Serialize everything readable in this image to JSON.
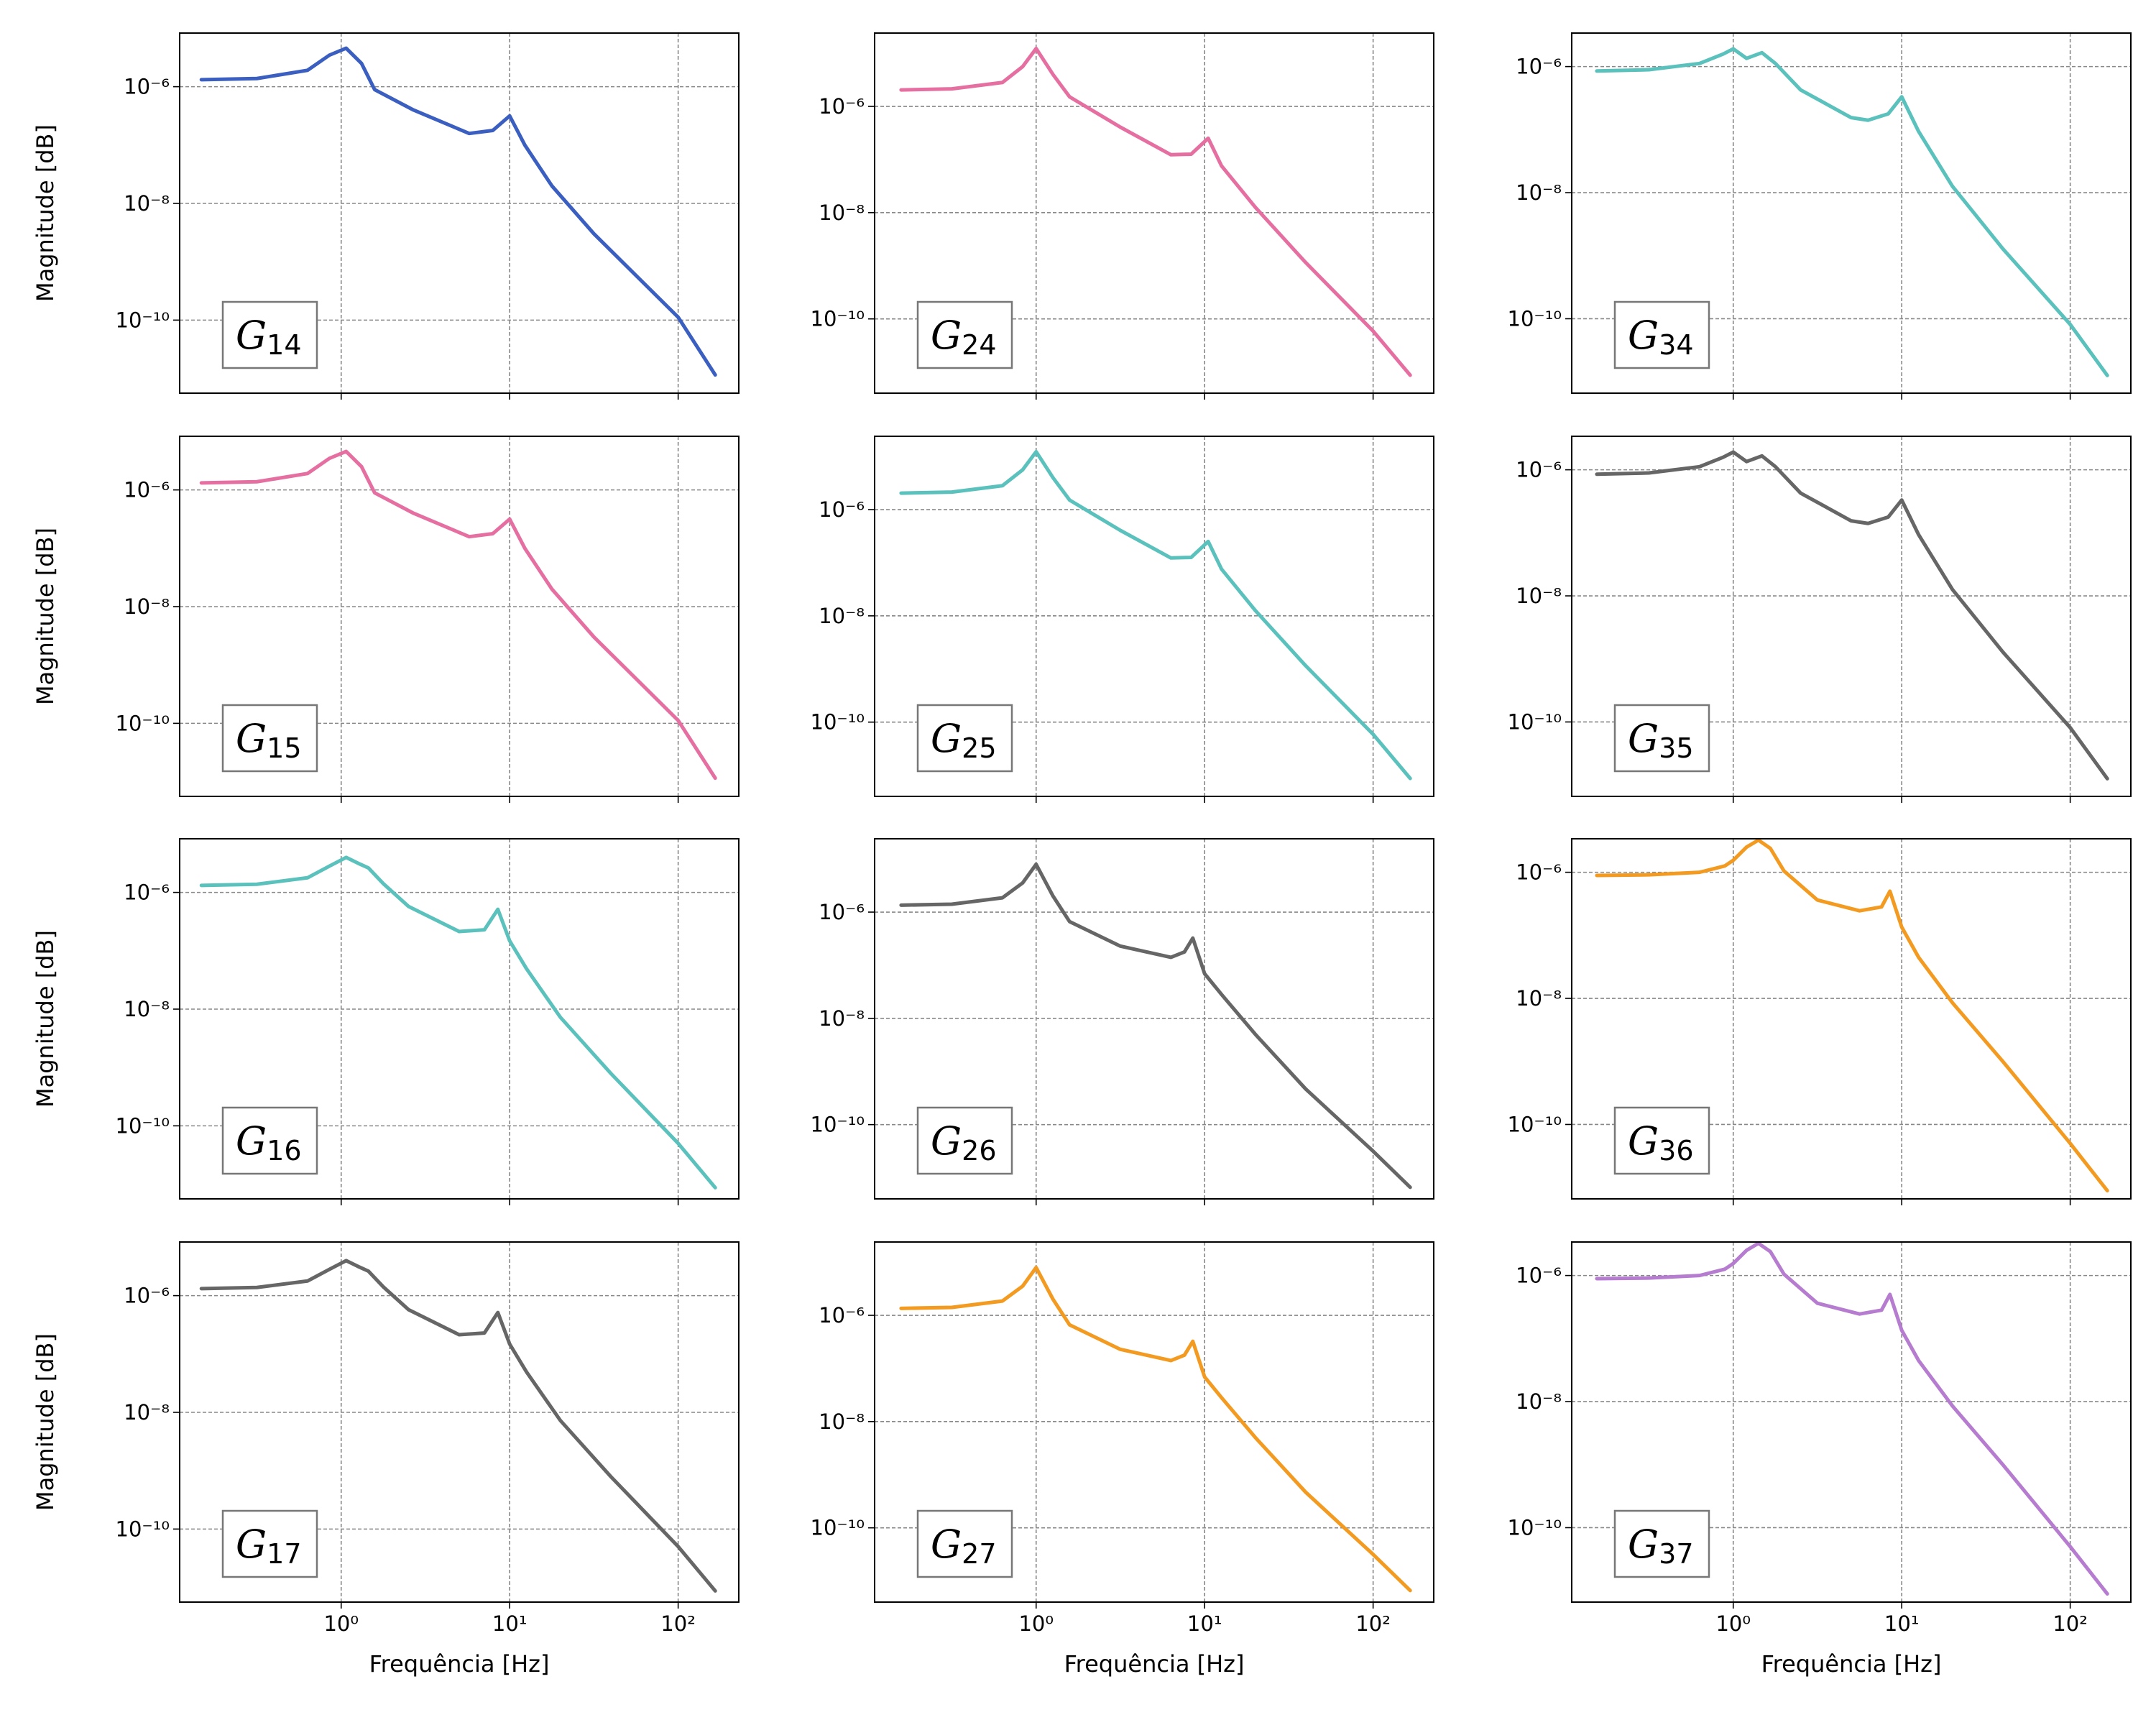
{
  "chart_data": [
    {
      "type": "line",
      "label": {
        "text": "G",
        "sub": "14"
      },
      "ylabel": "Magnitude [dB]",
      "color": "#3b5fc0",
      "log_x": true,
      "log_y": true,
      "grid": true,
      "xlim": [
        0.11,
        229
      ],
      "ylim": [
        5.6e-12,
        8.3e-06
      ],
      "xticks": [
        1,
        10,
        100
      ],
      "yticks": [
        {
          "value": 1e-10,
          "label": "10⁻¹⁰"
        },
        {
          "value": 1e-08,
          "label": "10⁻⁸"
        },
        {
          "value": 1e-06,
          "label": "10⁻⁶"
        }
      ],
      "x": [
        0.148,
        0.316,
        0.631,
        0.851,
        1.07,
        1.32,
        1.58,
        2.69,
        5.75,
        7.94,
        10,
        12.3,
        17.8,
        31.6,
        100,
        166
      ],
      "values": [
        1.32e-06,
        1.38e-06,
        1.91e-06,
        3.47e-06,
        4.57e-06,
        2.51e-06,
        8.91e-07,
        3.98e-07,
        1.58e-07,
        1.78e-07,
        3.16e-07,
        1e-07,
        2e-08,
        3.02e-09,
        1.12e-10,
        1.15e-11
      ]
    },
    {
      "type": "line",
      "label": {
        "text": "G",
        "sub": "24"
      },
      "color": "#e66fa1",
      "log_x": true,
      "log_y": true,
      "grid": true,
      "xlim": [
        0.11,
        229
      ],
      "ylim": [
        4e-12,
        2.4e-05
      ],
      "xticks": [
        1,
        10,
        100
      ],
      "yticks": [
        {
          "value": 1e-10,
          "label": "10⁻¹⁰"
        },
        {
          "value": 1e-08,
          "label": "10⁻⁸"
        },
        {
          "value": 1e-06,
          "label": "10⁻⁶"
        }
      ],
      "x": [
        0.158,
        0.316,
        0.631,
        0.832,
        1,
        1.26,
        1.58,
        3.16,
        6.31,
        8.32,
        10.5,
        12.6,
        20,
        39.8,
        100,
        166
      ],
      "values": [
        2.04e-06,
        2.14e-06,
        2.82e-06,
        5.62e-06,
        1.23e-05,
        3.98e-06,
        1.51e-06,
        4.07e-07,
        1.23e-07,
        1.26e-07,
        2.51e-07,
        7.59e-08,
        1.26e-08,
        1.15e-09,
        5.89e-11,
        8.71e-12
      ]
    },
    {
      "type": "line",
      "label": {
        "text": "G",
        "sub": "34"
      },
      "color": "#5bc1bd",
      "log_x": true,
      "log_y": true,
      "grid": true,
      "xlim": [
        0.11,
        229
      ],
      "ylim": [
        6.6e-12,
        3.4e-06
      ],
      "xticks": [
        1,
        10,
        100
      ],
      "yticks": [
        {
          "value": 1e-10,
          "label": "10⁻¹⁰"
        },
        {
          "value": 1e-08,
          "label": "10⁻⁸"
        },
        {
          "value": 1e-06,
          "label": "10⁻⁶"
        }
      ],
      "x": [
        0.155,
        0.316,
        0.631,
        0.871,
        1,
        1.2,
        1.48,
        1.78,
        2.51,
        5.01,
        6.31,
        8.32,
        10,
        12.6,
        20,
        39.8,
        100,
        166
      ],
      "values": [
        8.51e-07,
        8.91e-07,
        1.12e-06,
        1.58e-06,
        1.91e-06,
        1.35e-06,
        1.66e-06,
        1.12e-06,
        4.27e-07,
        1.55e-07,
        1.41e-07,
        1.78e-07,
        3.31e-07,
        9.33e-08,
        1.26e-08,
        1.29e-09,
        8.13e-11,
        1.26e-11
      ]
    },
    {
      "type": "line",
      "label": {
        "text": "G",
        "sub": "15"
      },
      "ylabel": "Magnitude [dB]",
      "color": "#e66fa1",
      "log_x": true,
      "log_y": true,
      "grid": true,
      "xlim": [
        0.11,
        229
      ],
      "ylim": [
        5.6e-12,
        8.3e-06
      ],
      "xticks": [
        1,
        10,
        100
      ],
      "yticks": [
        {
          "value": 1e-10,
          "label": "10⁻¹⁰"
        },
        {
          "value": 1e-08,
          "label": "10⁻⁸"
        },
        {
          "value": 1e-06,
          "label": "10⁻⁶"
        }
      ],
      "x": [
        0.148,
        0.316,
        0.631,
        0.851,
        1.07,
        1.32,
        1.58,
        2.69,
        5.75,
        7.94,
        10,
        12.3,
        17.8,
        31.6,
        100,
        166
      ],
      "values": [
        1.32e-06,
        1.38e-06,
        1.91e-06,
        3.47e-06,
        4.57e-06,
        2.51e-06,
        8.91e-07,
        3.98e-07,
        1.58e-07,
        1.78e-07,
        3.16e-07,
        1e-07,
        2e-08,
        3.02e-09,
        1.12e-10,
        1.15e-11
      ]
    },
    {
      "type": "line",
      "label": {
        "text": "G",
        "sub": "25"
      },
      "color": "#5bc1bd",
      "log_x": true,
      "log_y": true,
      "grid": true,
      "xlim": [
        0.11,
        229
      ],
      "ylim": [
        4e-12,
        2.4e-05
      ],
      "xticks": [
        1,
        10,
        100
      ],
      "yticks": [
        {
          "value": 1e-10,
          "label": "10⁻¹⁰"
        },
        {
          "value": 1e-08,
          "label": "10⁻⁸"
        },
        {
          "value": 1e-06,
          "label": "10⁻⁶"
        }
      ],
      "x": [
        0.158,
        0.316,
        0.631,
        0.832,
        1,
        1.26,
        1.58,
        3.16,
        6.31,
        8.32,
        10.5,
        12.6,
        20,
        39.8,
        100,
        166
      ],
      "values": [
        2.04e-06,
        2.14e-06,
        2.82e-06,
        5.62e-06,
        1.23e-05,
        3.98e-06,
        1.51e-06,
        4.07e-07,
        1.23e-07,
        1.26e-07,
        2.51e-07,
        7.59e-08,
        1.26e-08,
        1.15e-09,
        5.89e-11,
        8.71e-12
      ]
    },
    {
      "type": "line",
      "label": {
        "text": "G",
        "sub": "35"
      },
      "color": "#666666",
      "log_x": true,
      "log_y": true,
      "grid": true,
      "xlim": [
        0.11,
        229
      ],
      "ylim": [
        6.6e-12,
        3.4e-06
      ],
      "xticks": [
        1,
        10,
        100
      ],
      "yticks": [
        {
          "value": 1e-10,
          "label": "10⁻¹⁰"
        },
        {
          "value": 1e-08,
          "label": "10⁻⁸"
        },
        {
          "value": 1e-06,
          "label": "10⁻⁶"
        }
      ],
      "x": [
        0.155,
        0.316,
        0.631,
        0.871,
        1,
        1.2,
        1.48,
        1.78,
        2.51,
        5.01,
        6.31,
        8.32,
        10,
        12.6,
        20,
        39.8,
        100,
        166
      ],
      "values": [
        8.51e-07,
        8.91e-07,
        1.12e-06,
        1.58e-06,
        1.91e-06,
        1.35e-06,
        1.66e-06,
        1.12e-06,
        4.27e-07,
        1.55e-07,
        1.41e-07,
        1.78e-07,
        3.31e-07,
        9.33e-08,
        1.26e-08,
        1.29e-09,
        8.13e-11,
        1.26e-11
      ]
    },
    {
      "type": "line",
      "label": {
        "text": "G",
        "sub": "16"
      },
      "ylabel": "Magnitude [dB]",
      "color": "#5bc1bd",
      "log_x": true,
      "log_y": true,
      "grid": true,
      "xlim": [
        0.11,
        229
      ],
      "ylim": [
        5.6e-12,
        8.3e-06
      ],
      "xticks": [
        1,
        10,
        100
      ],
      "yticks": [
        {
          "value": 1e-10,
          "label": "10⁻¹⁰"
        },
        {
          "value": 1e-08,
          "label": "10⁻⁸"
        },
        {
          "value": 1e-06,
          "label": "10⁻⁶"
        }
      ],
      "x": [
        0.148,
        0.316,
        0.631,
        0.851,
        1.07,
        1.26,
        1.45,
        1.78,
        2.51,
        5.01,
        7.08,
        8.51,
        10,
        12.6,
        20,
        39.8,
        100,
        166
      ],
      "values": [
        1.32e-06,
        1.38e-06,
        1.78e-06,
        2.82e-06,
        3.98e-06,
        3.16e-06,
        2.63e-06,
        1.41e-06,
        5.75e-07,
        2.14e-07,
        2.29e-07,
        5.13e-07,
        1.48e-07,
        4.9e-08,
        7.24e-09,
        7.94e-10,
        5.01e-11,
        8.71e-12
      ]
    },
    {
      "type": "line",
      "label": {
        "text": "G",
        "sub": "26"
      },
      "color": "#666666",
      "log_x": true,
      "log_y": true,
      "grid": true,
      "xlim": [
        0.11,
        229
      ],
      "ylim": [
        4e-12,
        2.4e-05
      ],
      "xticks": [
        1,
        10,
        100
      ],
      "yticks": [
        {
          "value": 1e-10,
          "label": "10⁻¹⁰"
        },
        {
          "value": 1e-08,
          "label": "10⁻⁸"
        },
        {
          "value": 1e-06,
          "label": "10⁻⁶"
        }
      ],
      "x": [
        0.158,
        0.316,
        0.631,
        0.832,
        1,
        1.26,
        1.58,
        3.16,
        6.31,
        7.59,
        8.51,
        10,
        12.6,
        20,
        39.8,
        100,
        166
      ],
      "values": [
        1.35e-06,
        1.41e-06,
        1.86e-06,
        3.55e-06,
        7.94e-06,
        2e-06,
        6.61e-07,
        2.29e-07,
        1.41e-07,
        1.78e-07,
        3.24e-07,
        6.92e-08,
        2.82e-08,
        5.01e-09,
        4.68e-10,
        3.16e-11,
        6.61e-12
      ]
    },
    {
      "type": "line",
      "label": {
        "text": "G",
        "sub": "36"
      },
      "color": "#f39a21",
      "log_x": true,
      "log_y": true,
      "grid": true,
      "xlim": [
        0.11,
        229
      ],
      "ylim": [
        6.6e-12,
        3.4e-06
      ],
      "xticks": [
        1,
        10,
        100
      ],
      "yticks": [
        {
          "value": 1e-10,
          "label": "10⁻¹⁰"
        },
        {
          "value": 1e-08,
          "label": "10⁻⁸"
        },
        {
          "value": 1e-06,
          "label": "10⁻⁶"
        }
      ],
      "x": [
        0.155,
        0.316,
        0.631,
        0.891,
        1,
        1.2,
        1.41,
        1.66,
        2,
        3.16,
        5.62,
        7.59,
        8.51,
        10,
        12.6,
        20,
        39.8,
        100,
        166
      ],
      "values": [
        8.91e-07,
        9.12e-07,
        1e-06,
        1.26e-06,
        1.55e-06,
        2.51e-06,
        3.24e-06,
        2.4e-06,
        1.05e-06,
        3.63e-07,
        2.45e-07,
        2.82e-07,
        5.01e-07,
        1.35e-07,
        4.47e-08,
        8.51e-09,
        1e-09,
        5.01e-11,
        8.91e-12
      ]
    },
    {
      "type": "line",
      "label": {
        "text": "G",
        "sub": "17"
      },
      "ylabel": "Magnitude [dB]",
      "xlabel": "Frequência [Hz]",
      "color": "#666666",
      "log_x": true,
      "log_y": true,
      "grid": true,
      "xlim": [
        0.11,
        229
      ],
      "ylim": [
        5.6e-12,
        8.3e-06
      ],
      "xticks": [
        {
          "value": 1,
          "label": "10⁰"
        },
        {
          "value": 10,
          "label": "10¹"
        },
        {
          "value": 100,
          "label": "10²"
        }
      ],
      "yticks": [
        {
          "value": 1e-10,
          "label": "10⁻¹⁰"
        },
        {
          "value": 1e-08,
          "label": "10⁻⁸"
        },
        {
          "value": 1e-06,
          "label": "10⁻⁶"
        }
      ],
      "x": [
        0.148,
        0.316,
        0.631,
        0.851,
        1.07,
        1.26,
        1.45,
        1.78,
        2.51,
        5.01,
        7.08,
        8.51,
        10,
        12.6,
        20,
        39.8,
        100,
        166
      ],
      "values": [
        1.32e-06,
        1.38e-06,
        1.78e-06,
        2.82e-06,
        3.98e-06,
        3.16e-06,
        2.63e-06,
        1.41e-06,
        5.75e-07,
        2.14e-07,
        2.29e-07,
        5.13e-07,
        1.48e-07,
        4.9e-08,
        7.24e-09,
        7.94e-10,
        5.01e-11,
        8.71e-12
      ]
    },
    {
      "type": "line",
      "label": {
        "text": "G",
        "sub": "27"
      },
      "xlabel": "Frequência [Hz]",
      "color": "#f39a21",
      "log_x": true,
      "log_y": true,
      "grid": true,
      "xlim": [
        0.11,
        229
      ],
      "ylim": [
        4e-12,
        2.4e-05
      ],
      "xticks": [
        {
          "value": 1,
          "label": "10⁰"
        },
        {
          "value": 10,
          "label": "10¹"
        },
        {
          "value": 100,
          "label": "10²"
        }
      ],
      "yticks": [
        {
          "value": 1e-10,
          "label": "10⁻¹⁰"
        },
        {
          "value": 1e-08,
          "label": "10⁻⁸"
        },
        {
          "value": 1e-06,
          "label": "10⁻⁶"
        }
      ],
      "x": [
        0.158,
        0.316,
        0.631,
        0.832,
        1,
        1.26,
        1.58,
        3.16,
        6.31,
        7.59,
        8.51,
        10,
        12.6,
        20,
        39.8,
        100,
        166
      ],
      "values": [
        1.35e-06,
        1.41e-06,
        1.86e-06,
        3.55e-06,
        7.94e-06,
        2e-06,
        6.61e-07,
        2.29e-07,
        1.41e-07,
        1.78e-07,
        3.24e-07,
        6.92e-08,
        2.82e-08,
        5.01e-09,
        4.68e-10,
        3.16e-11,
        6.61e-12
      ]
    },
    {
      "type": "line",
      "label": {
        "text": "G",
        "sub": "37"
      },
      "xlabel": "Frequência [Hz]",
      "color": "#b67ccf",
      "log_x": true,
      "log_y": true,
      "grid": true,
      "xlim": [
        0.11,
        229
      ],
      "ylim": [
        6.6e-12,
        3.4e-06
      ],
      "xticks": [
        {
          "value": 1,
          "label": "10⁰"
        },
        {
          "value": 10,
          "label": "10¹"
        },
        {
          "value": 100,
          "label": "10²"
        }
      ],
      "yticks": [
        {
          "value": 1e-10,
          "label": "10⁻¹⁰"
        },
        {
          "value": 1e-08,
          "label": "10⁻⁸"
        },
        {
          "value": 1e-06,
          "label": "10⁻⁶"
        }
      ],
      "x": [
        0.155,
        0.316,
        0.631,
        0.891,
        1,
        1.2,
        1.41,
        1.66,
        2,
        3.16,
        5.62,
        7.59,
        8.51,
        10,
        12.6,
        20,
        39.8,
        100,
        166
      ],
      "values": [
        8.91e-07,
        9.12e-07,
        1e-06,
        1.26e-06,
        1.55e-06,
        2.51e-06,
        3.24e-06,
        2.4e-06,
        1.05e-06,
        3.63e-07,
        2.45e-07,
        2.82e-07,
        5.01e-07,
        1.35e-07,
        4.47e-08,
        8.51e-09,
        1e-09,
        5.01e-11,
        8.91e-12
      ]
    }
  ]
}
